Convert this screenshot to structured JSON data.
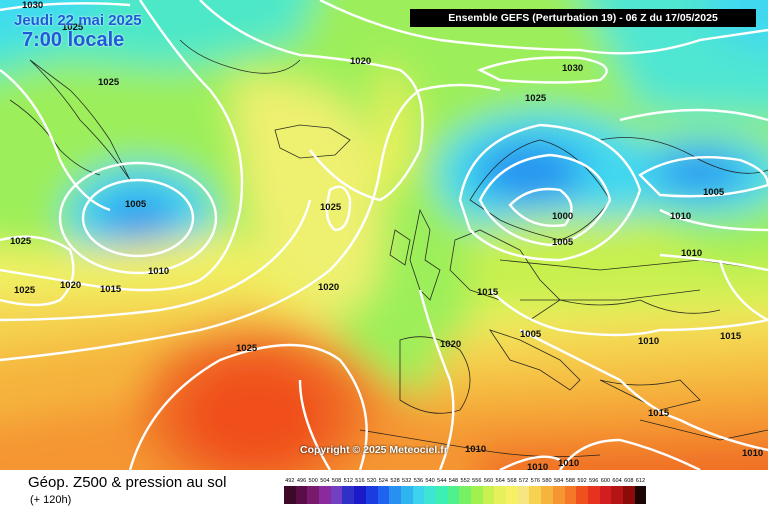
{
  "header": {
    "date": "Jeudi 22 mai 2025",
    "time": "7:00 locale",
    "model_info": "Ensemble GEFS  (Perturbation 19)  -  06 Z du 17/05/2025"
  },
  "footer": {
    "title": "Géop. Z500 & pression au sol",
    "subtitle": "(+ 120h)"
  },
  "copyright": "Copyright © 2025 Meteociel.fr",
  "pressure_labels": [
    "1030",
    "1025",
    "1020",
    "1030",
    "1025",
    "1005",
    "1025",
    "1010",
    "1015",
    "1020",
    "1025",
    "1020",
    "1025",
    "1010",
    "1000",
    "1005",
    "1005",
    "1010",
    "1010",
    "1015",
    "1020",
    "1005",
    "1010",
    "1015",
    "1015",
    "1010",
    "1010",
    "1010",
    "1025",
    "1025"
  ],
  "color_scale": {
    "labels": [
      "492",
      "496",
      "500",
      "504",
      "508",
      "512",
      "516",
      "520",
      "524",
      "528",
      "532",
      "536",
      "540",
      "544",
      "548",
      "552",
      "556",
      "560",
      "564",
      "568",
      "572",
      "576",
      "580",
      "584",
      "588",
      "592",
      "596",
      "600",
      "604",
      "608",
      "612"
    ],
    "colors": [
      "#3c0a28",
      "#5a0d46",
      "#7a1a6e",
      "#8a2a9e",
      "#7040c0",
      "#3030c8",
      "#1a1ac8",
      "#1a3ce0",
      "#1e64f0",
      "#2890f0",
      "#30b4f0",
      "#3cd2f0",
      "#3ce6d2",
      "#3cf0b4",
      "#50f08c",
      "#78f064",
      "#a0f050",
      "#c8f050",
      "#e6f05a",
      "#f5f064",
      "#f5e682",
      "#f5d250",
      "#f5b43c",
      "#f59632",
      "#f57828",
      "#f0501e",
      "#e6321e",
      "#d21e1e",
      "#b41414",
      "#8c0a0a",
      "#1e0505"
    ]
  }
}
